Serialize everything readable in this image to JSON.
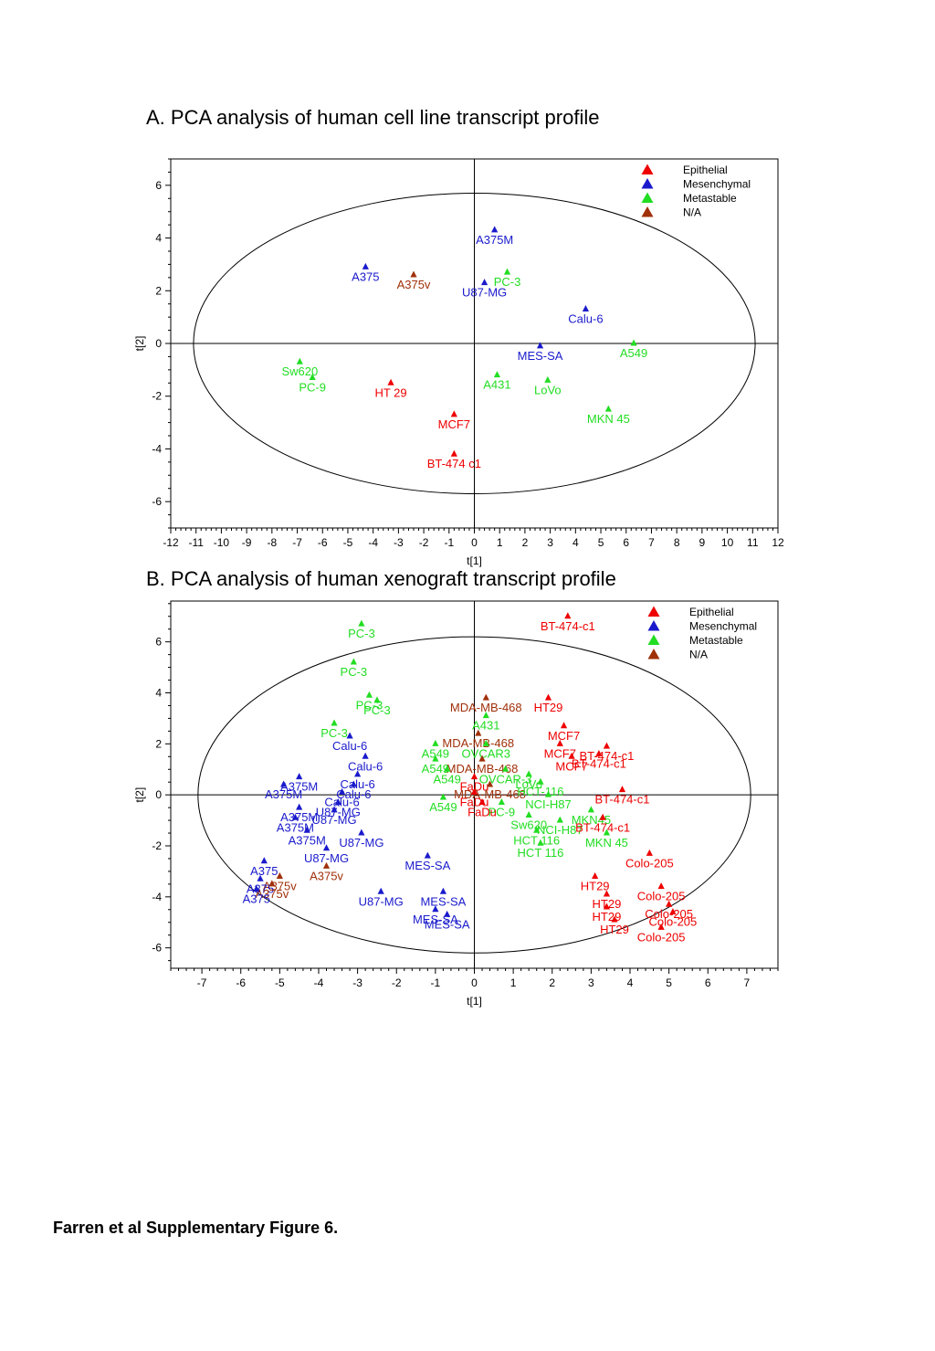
{
  "panels": {
    "a_title": "A. PCA analysis of human cell line transcript profile",
    "b_title": "B. PCA analysis of human xenograft transcript profile"
  },
  "footer": "Farren et al Supplementary Figure 6.",
  "colors": {
    "Epithelial": "#ee0000",
    "Mesenchymal": "#1a1acc",
    "Metastable": "#22dd22",
    "N/A": "#a0300a"
  },
  "chart_data": [
    {
      "type": "scatter",
      "title": "A. PCA analysis of human cell line transcript profile",
      "xlabel": "t[1]",
      "ylabel": "t[2]",
      "xlim": [
        -12,
        12
      ],
      "ylim": [
        -7,
        7
      ],
      "xticks": [
        -12,
        -11,
        -10,
        -9,
        -8,
        -7,
        -6,
        -5,
        -4,
        -3,
        -2,
        -1,
        0,
        1,
        2,
        3,
        4,
        5,
        6,
        7,
        8,
        9,
        10,
        11,
        12
      ],
      "yticks": [
        -6,
        -4,
        -2,
        0,
        2,
        4,
        6
      ],
      "ellipse": {
        "rx": 11.1,
        "ry": 5.7
      },
      "grid": false,
      "legend_position": "top-right",
      "legend": [
        "Epithelial",
        "Mesenchymal",
        "Metastable",
        "N/A"
      ],
      "points": [
        {
          "label": "A375M",
          "x": 0.8,
          "y": 4.3,
          "group": "Mesenchymal"
        },
        {
          "label": "A375",
          "x": -4.3,
          "y": 2.9,
          "group": "Mesenchymal"
        },
        {
          "label": "A375v",
          "x": -2.4,
          "y": 2.6,
          "group": "N/A"
        },
        {
          "label": "U87-MG",
          "x": 0.4,
          "y": 2.3,
          "group": "Mesenchymal"
        },
        {
          "label": "PC-3",
          "x": 1.3,
          "y": 2.7,
          "group": "Metastable"
        },
        {
          "label": "Calu-6",
          "x": 4.4,
          "y": 1.3,
          "group": "Mesenchymal"
        },
        {
          "label": "MES-SA",
          "x": 2.6,
          "y": -0.1,
          "group": "Mesenchymal"
        },
        {
          "label": "A549",
          "x": 6.3,
          "y": 0.0,
          "group": "Metastable"
        },
        {
          "label": "Sw620",
          "x": -6.9,
          "y": -0.7,
          "group": "Metastable"
        },
        {
          "label": "PC-9",
          "x": -6.4,
          "y": -1.3,
          "group": "Metastable"
        },
        {
          "label": "HT 29",
          "x": -3.3,
          "y": -1.5,
          "group": "Epithelial"
        },
        {
          "label": "A431",
          "x": 0.9,
          "y": -1.2,
          "group": "Metastable"
        },
        {
          "label": "LoVo",
          "x": 2.9,
          "y": -1.4,
          "group": "Metastable"
        },
        {
          "label": "MCF7",
          "x": -0.8,
          "y": -2.7,
          "group": "Epithelial"
        },
        {
          "label": "MKN 45",
          "x": 5.3,
          "y": -2.5,
          "group": "Metastable"
        },
        {
          "label": "BT-474 c1",
          "x": -0.8,
          "y": -4.2,
          "group": "Epithelial"
        }
      ]
    },
    {
      "type": "scatter",
      "title": "B. PCA analysis of human xenograft transcript profile",
      "xlabel": "t[1]",
      "ylabel": "t[2]",
      "xlim": [
        -7.8,
        7.8
      ],
      "ylim": [
        -6.8,
        7.6
      ],
      "xticks": [
        -7,
        -6,
        -5,
        -4,
        -3,
        -2,
        -1,
        0,
        1,
        2,
        3,
        4,
        5,
        6,
        7
      ],
      "yticks": [
        -6,
        -4,
        -2,
        0,
        2,
        4,
        6
      ],
      "ellipse": {
        "rx": 7.1,
        "ry": 6.2
      },
      "grid": false,
      "legend_position": "top-right",
      "legend": [
        "Epithelial",
        "Mesenchymal",
        "Metastable",
        "N/A"
      ],
      "points": [
        {
          "label": "PC-3",
          "x": -2.9,
          "y": 6.7,
          "group": "Metastable"
        },
        {
          "label": "BT-474-c1",
          "x": 2.4,
          "y": 7.0,
          "group": "Epithelial"
        },
        {
          "label": "PC-3",
          "x": -3.1,
          "y": 5.2,
          "group": "Metastable"
        },
        {
          "label": "PC-3",
          "x": -2.7,
          "y": 3.9,
          "group": "Metastable"
        },
        {
          "label": "PC-3",
          "x": -2.5,
          "y": 3.7,
          "group": "Metastable"
        },
        {
          "label": "MDA-MB-468",
          "x": 0.3,
          "y": 3.8,
          "group": "N/A"
        },
        {
          "label": "HT29",
          "x": 1.9,
          "y": 3.8,
          "group": "Epithelial"
        },
        {
          "label": "A431",
          "x": 0.3,
          "y": 3.1,
          "group": "Metastable"
        },
        {
          "label": "PC-3",
          "x": -3.6,
          "y": 2.8,
          "group": "Metastable"
        },
        {
          "label": "MDA-MB-468",
          "x": 0.1,
          "y": 2.4,
          "group": "N/A"
        },
        {
          "label": "MCF7",
          "x": 2.3,
          "y": 2.7,
          "group": "Epithelial"
        },
        {
          "label": "MCF7",
          "x": 2.2,
          "y": 2.0,
          "group": "Epithelial"
        },
        {
          "label": "Calu-6",
          "x": -3.2,
          "y": 2.3,
          "group": "Mesenchymal"
        },
        {
          "label": "A549",
          "x": -1.0,
          "y": 2.0,
          "group": "Metastable"
        },
        {
          "label": "OVCAR3",
          "x": 0.3,
          "y": 2.0,
          "group": "Metastable"
        },
        {
          "label": "MDA-MB-468",
          "x": 0.2,
          "y": 1.4,
          "group": "N/A"
        },
        {
          "label": "MCF7",
          "x": 2.5,
          "y": 1.5,
          "group": "Epithelial"
        },
        {
          "label": "BT-474-c1",
          "x": 3.2,
          "y": 1.6,
          "group": "Epithelial"
        },
        {
          "label": "BT-474-c1",
          "x": 3.4,
          "y": 1.9,
          "group": "Epithelial"
        },
        {
          "label": "Calu-6",
          "x": -2.8,
          "y": 1.5,
          "group": "Mesenchymal"
        },
        {
          "label": "A549",
          "x": -1.0,
          "y": 1.4,
          "group": "Metastable"
        },
        {
          "label": "A549",
          "x": -0.7,
          "y": 1.0,
          "group": "Metastable"
        },
        {
          "label": "OVCAR-3",
          "x": 0.8,
          "y": 1.0,
          "group": "Metastable"
        },
        {
          "label": "FaDu",
          "x": 0.0,
          "y": 0.7,
          "group": "Epithelial"
        },
        {
          "label": "Calu-6",
          "x": -3.0,
          "y": 0.8,
          "group": "Mesenchymal"
        },
        {
          "label": "A375M",
          "x": -4.5,
          "y": 0.7,
          "group": "Mesenchymal"
        },
        {
          "label": "Calu-6",
          "x": -3.1,
          "y": 0.4,
          "group": "Mesenchymal"
        },
        {
          "label": "Calu-6",
          "x": -3.4,
          "y": 0.1,
          "group": "Mesenchymal"
        },
        {
          "label": "A375M",
          "x": -4.9,
          "y": 0.4,
          "group": "Mesenchymal"
        },
        {
          "label": "MDA-MB-468",
          "x": 0.4,
          "y": 0.4,
          "group": "N/A"
        },
        {
          "label": "LoVo",
          "x": 1.4,
          "y": 0.8,
          "group": "Metastable"
        },
        {
          "label": "HCT-116",
          "x": 1.7,
          "y": 0.5,
          "group": "Metastable"
        },
        {
          "label": "FaDu",
          "x": 0.0,
          "y": 0.1,
          "group": "Epithelial"
        },
        {
          "label": "PC-9",
          "x": 0.7,
          "y": -0.3,
          "group": "Metastable"
        },
        {
          "label": "NCI-H87",
          "x": 1.9,
          "y": 0.0,
          "group": "Metastable"
        },
        {
          "label": "BT-474-c1",
          "x": 3.8,
          "y": 0.2,
          "group": "Epithelial"
        },
        {
          "label": "FaDu",
          "x": 0.2,
          "y": -0.3,
          "group": "Epithelial"
        },
        {
          "label": "U87-MG",
          "x": -3.5,
          "y": -0.3,
          "group": "Mesenchymal"
        },
        {
          "label": "A549",
          "x": -0.8,
          "y": -0.1,
          "group": "Metastable"
        },
        {
          "label": "MKN45",
          "x": 3.0,
          "y": -0.6,
          "group": "Metastable"
        },
        {
          "label": "A375M",
          "x": -4.5,
          "y": -0.5,
          "group": "Mesenchymal"
        },
        {
          "label": "U87-MG",
          "x": -3.6,
          "y": -0.6,
          "group": "Mesenchymal"
        },
        {
          "label": "A375M",
          "x": -4.6,
          "y": -0.9,
          "group": "Mesenchymal"
        },
        {
          "label": "Sw620",
          "x": 1.4,
          "y": -0.8,
          "group": "Metastable"
        },
        {
          "label": "NCI-H87",
          "x": 2.2,
          "y": -1.0,
          "group": "Metastable"
        },
        {
          "label": "BT-474-c1",
          "x": 3.3,
          "y": -0.9,
          "group": "Epithelial"
        },
        {
          "label": "HCT 116",
          "x": 1.6,
          "y": -1.4,
          "group": "Metastable"
        },
        {
          "label": "A375M",
          "x": -4.3,
          "y": -1.4,
          "group": "Mesenchymal"
        },
        {
          "label": "U87-MG",
          "x": -2.9,
          "y": -1.5,
          "group": "Mesenchymal"
        },
        {
          "label": "MKN 45",
          "x": 3.4,
          "y": -1.5,
          "group": "Metastable"
        },
        {
          "label": "HCT 116",
          "x": 1.7,
          "y": -1.9,
          "group": "Metastable"
        },
        {
          "label": "U87-MG",
          "x": -3.8,
          "y": -2.1,
          "group": "Mesenchymal"
        },
        {
          "label": "MES-SA",
          "x": -1.2,
          "y": -2.4,
          "group": "Mesenchymal"
        },
        {
          "label": "Colo-205",
          "x": 4.5,
          "y": -2.3,
          "group": "Epithelial"
        },
        {
          "label": "A375v",
          "x": -3.8,
          "y": -2.8,
          "group": "N/A"
        },
        {
          "label": "A375",
          "x": -5.4,
          "y": -2.6,
          "group": "Mesenchymal"
        },
        {
          "label": "A375v",
          "x": -5.0,
          "y": -3.2,
          "group": "N/A"
        },
        {
          "label": "A375",
          "x": -5.5,
          "y": -3.3,
          "group": "Mesenchymal"
        },
        {
          "label": "A375v",
          "x": -5.2,
          "y": -3.5,
          "group": "N/A"
        },
        {
          "label": "A375",
          "x": -5.6,
          "y": -3.7,
          "group": "Mesenchymal"
        },
        {
          "label": "HT29",
          "x": 3.1,
          "y": -3.2,
          "group": "Epithelial"
        },
        {
          "label": "Colo-205",
          "x": 4.8,
          "y": -3.6,
          "group": "Epithelial"
        },
        {
          "label": "HT29",
          "x": 3.4,
          "y": -3.9,
          "group": "Epithelial"
        },
        {
          "label": "U87-MG",
          "x": -2.4,
          "y": -3.8,
          "group": "Mesenchymal"
        },
        {
          "label": "MES-SA",
          "x": -0.8,
          "y": -3.8,
          "group": "Mesenchymal"
        },
        {
          "label": "HT29",
          "x": 3.4,
          "y": -4.4,
          "group": "Epithelial"
        },
        {
          "label": "Colo-205",
          "x": 5.0,
          "y": -4.3,
          "group": "Epithelial"
        },
        {
          "label": "Colo-205",
          "x": 5.1,
          "y": -4.6,
          "group": "Epithelial"
        },
        {
          "label": "MES-SA",
          "x": -1.0,
          "y": -4.5,
          "group": "Mesenchymal"
        },
        {
          "label": "MES-SA",
          "x": -0.7,
          "y": -4.7,
          "group": "Mesenchymal"
        },
        {
          "label": "HT29",
          "x": 3.6,
          "y": -4.9,
          "group": "Epithelial"
        },
        {
          "label": "Colo-205",
          "x": 4.8,
          "y": -5.2,
          "group": "Epithelial"
        }
      ]
    }
  ]
}
